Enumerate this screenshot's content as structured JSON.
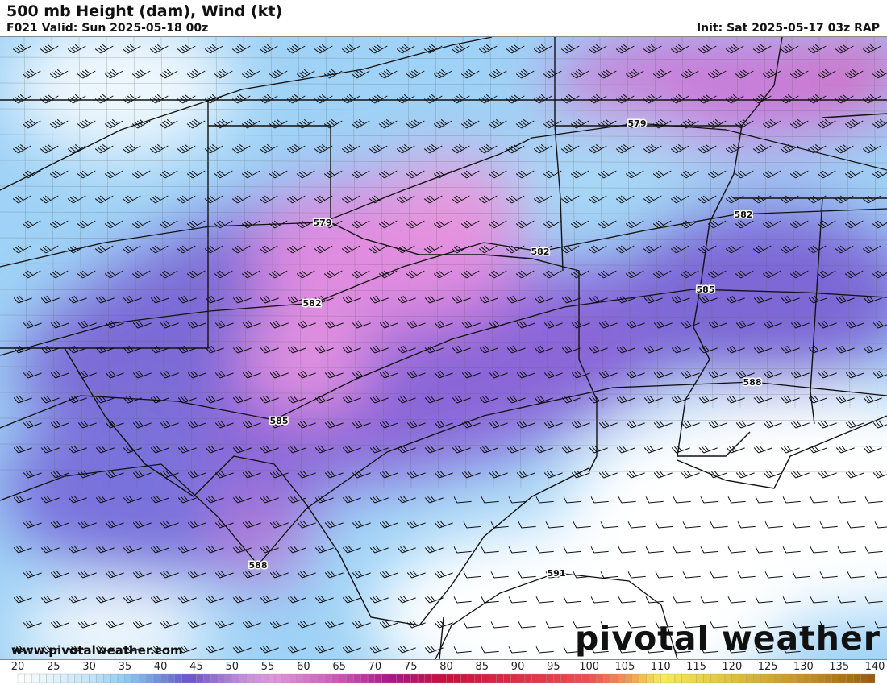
{
  "header": {
    "title": "500 mb Height (dam), Wind (kt)",
    "valid": "F021 Valid: Sun 2025-05-18 00z",
    "init": "Init: Sat 2025-05-17 03z RAP"
  },
  "map": {
    "contour_labels": [
      "579",
      "579",
      "582",
      "582",
      "582",
      "585",
      "585",
      "588",
      "588",
      "591"
    ],
    "contour_color": "#111111",
    "wind_shading_colors": {
      "low": "#ffffff",
      "mid_blue": "#8ec8f4",
      "purple": "#6a5acd",
      "magenta": "#e090dc",
      "red": "#c8143c",
      "yellow": "#f6ec5a",
      "brown": "#9a5a10"
    }
  },
  "footer": {
    "url": "www.pivotalweather.com",
    "logo": "pivotal weather"
  },
  "colorbar": {
    "units": "kt",
    "ticks": [
      "20",
      "25",
      "30",
      "35",
      "40",
      "45",
      "50",
      "55",
      "60",
      "65",
      "70",
      "75",
      "80",
      "85",
      "90",
      "95",
      "100",
      "105",
      "110",
      "115",
      "120",
      "125",
      "130",
      "135",
      "140"
    ],
    "min": 20,
    "max": 140
  }
}
